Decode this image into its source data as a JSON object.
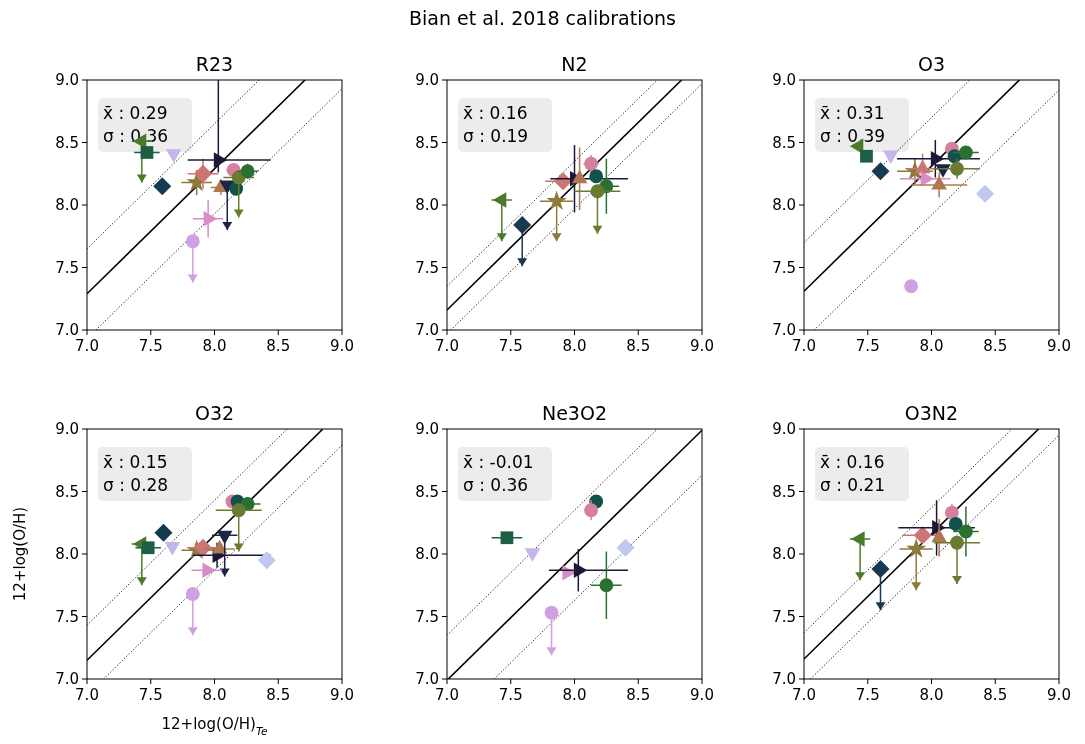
{
  "chart_data": [
    {
      "type": "other",
      "title": "Bian et al. 2018 calibrations"
    },
    {
      "type": "scatter",
      "title": "R23",
      "xlim": [
        7,
        9
      ],
      "ylim": [
        7,
        9
      ],
      "xticks": [
        {
          "value": 7,
          "label": "7.0"
        },
        {
          "value": 7.5,
          "label": "7.5"
        },
        {
          "value": 8,
          "label": "8.0"
        },
        {
          "value": 8.5,
          "label": "8.5"
        },
        {
          "value": 9,
          "label": "9.0"
        }
      ],
      "yticks": [
        {
          "value": 7,
          "label": "7.0"
        },
        {
          "value": 7.5,
          "label": "7.5"
        },
        {
          "value": 8,
          "label": "8.0"
        },
        {
          "value": 8.5,
          "label": "8.5"
        },
        {
          "value": 9,
          "label": "9.0"
        }
      ],
      "annotations": [
        "x̄ : 0.29",
        "σ : 0.36"
      ],
      "series": [
        {
          "type": "line",
          "color": "#000000",
          "line_style": "solid",
          "marker": "none",
          "x": [
            7,
            8.71
          ],
          "values": [
            7.29,
            9
          ]
        },
        {
          "type": "line",
          "color": "#000000",
          "line_style": "dotted",
          "marker": "none",
          "x": [
            7,
            8.35
          ],
          "values": [
            7.65,
            9
          ]
        },
        {
          "type": "line",
          "color": "#000000",
          "line_style": "dotted",
          "marker": "none",
          "x": [
            7.07,
            9
          ],
          "values": [
            7,
            8.93
          ]
        },
        {
          "type": "scatter",
          "color": "#4a7a2a",
          "marker": "triangle-left",
          "x": [
            7.43
          ],
          "values": [
            8.51
          ],
          "errors": [
            [
              8.18,
              8.51
            ]
          ],
          "xerrors": [
            0.08
          ]
        },
        {
          "type": "scatter",
          "color": "#1e5e45",
          "marker": "square",
          "x": [
            7.47
          ],
          "values": [
            8.42
          ],
          "xerrors": [
            0.1
          ]
        },
        {
          "type": "scatter",
          "color": "#c5b5e8",
          "marker": "triangle-down",
          "x": [
            7.68
          ],
          "values": [
            8.41
          ]
        },
        {
          "type": "scatter",
          "color": "#173a50",
          "marker": "diamond",
          "x": [
            7.59
          ],
          "values": [
            8.15
          ],
          "errors": [
            0.06
          ]
        },
        {
          "type": "scatter",
          "color": "#8c7a3a",
          "marker": "star",
          "x": [
            7.86
          ],
          "values": [
            8.18
          ],
          "errors": [
            0.1
          ],
          "xerrors": [
            0.12
          ]
        },
        {
          "type": "scatter",
          "color": "#cd7474",
          "marker": "diamond",
          "x": [
            7.91
          ],
          "values": [
            8.25
          ],
          "errors": [
            0.12
          ],
          "xerrors": [
            0.12
          ]
        },
        {
          "type": "scatter",
          "color": "#1c1838",
          "marker": "triangle-right",
          "x": [
            8.03
          ],
          "values": [
            8.36
          ],
          "errors": [
            [
              8.26,
              9
            ]
          ],
          "xerrors": [
            [
              7.79,
              8.44
            ]
          ]
        },
        {
          "type": "scatter",
          "color": "#b07850",
          "marker": "triangle",
          "x": [
            8.05
          ],
          "values": [
            8.14
          ],
          "errors": [
            0.06
          ],
          "xerrors": [
            0.08
          ]
        },
        {
          "type": "scatter",
          "color": "#1c2448",
          "marker": "triangle-down",
          "x": [
            8.1
          ],
          "values": [
            8.16
          ],
          "errors": [
            [
              7.8,
              8.16
            ]
          ]
        },
        {
          "type": "scatter",
          "color": "#d88cc8",
          "marker": "triangle-right",
          "x": [
            7.95
          ],
          "values": [
            7.89
          ],
          "errors": [
            0.15
          ],
          "xerrors": [
            0.12
          ]
        },
        {
          "type": "scatter",
          "color": "#d0a0e0",
          "marker": "circle",
          "x": [
            7.83
          ],
          "values": [
            7.71
          ],
          "errors": [
            [
              7.38,
              7.71
            ]
          ]
        },
        {
          "type": "scatter",
          "color": "#d580a0",
          "marker": "circle",
          "x": [
            8.15
          ],
          "values": [
            8.28
          ],
          "errors": [
            0.05
          ],
          "xerrors": [
            0.06
          ]
        },
        {
          "type": "scatter",
          "color": "#13524a",
          "marker": "circle",
          "x": [
            8.17
          ],
          "values": [
            8.13
          ]
        },
        {
          "type": "scatter",
          "color": "#6a7a30",
          "marker": "circle",
          "x": [
            8.19
          ],
          "values": [
            8.22
          ],
          "errors": [
            [
              7.9,
              8.22
            ]
          ],
          "xerrors": [
            0.12
          ]
        },
        {
          "type": "scatter",
          "color": "#2a7030",
          "marker": "circle",
          "x": [
            8.26
          ],
          "values": [
            8.27
          ],
          "errors": [
            0.06
          ],
          "xerrors": [
            0.08
          ]
        }
      ]
    },
    {
      "type": "scatter",
      "title": "N2",
      "xlim": [
        7,
        9
      ],
      "ylim": [
        7,
        9
      ],
      "xticks": [
        {
          "value": 7,
          "label": "7.0"
        },
        {
          "value": 7.5,
          "label": "7.5"
        },
        {
          "value": 8,
          "label": "8.0"
        },
        {
          "value": 8.5,
          "label": "8.5"
        },
        {
          "value": 9,
          "label": "9.0"
        }
      ],
      "yticks": [
        {
          "value": 7,
          "label": "7.0"
        },
        {
          "value": 7.5,
          "label": "7.5"
        },
        {
          "value": 8,
          "label": "8.0"
        },
        {
          "value": 8.5,
          "label": "8.5"
        },
        {
          "value": 9,
          "label": "9.0"
        }
      ],
      "annotations": [
        "x̄ : 0.16",
        "σ : 0.19"
      ],
      "series": [
        {
          "type": "line",
          "color": "#000000",
          "line_style": "solid",
          "marker": "none",
          "x": [
            7,
            8.84
          ],
          "values": [
            7.16,
            9
          ]
        },
        {
          "type": "line",
          "color": "#000000",
          "line_style": "dotted",
          "marker": "none",
          "x": [
            7,
            8.65
          ],
          "values": [
            7.35,
            9
          ]
        },
        {
          "type": "line",
          "color": "#000000",
          "line_style": "dotted",
          "marker": "none",
          "x": [
            7.03,
            9
          ],
          "values": [
            7,
            8.97
          ]
        },
        {
          "type": "scatter",
          "color": "#4a7a2a",
          "marker": "triangle-left",
          "x": [
            7.43
          ],
          "values": [
            8.04
          ],
          "errors": [
            [
              7.71,
              8.04
            ]
          ],
          "xerrors": [
            0.08
          ]
        },
        {
          "type": "scatter",
          "color": "#173a50",
          "marker": "diamond",
          "x": [
            7.59
          ],
          "values": [
            7.84
          ],
          "errors": [
            [
              7.51,
              7.84
            ]
          ]
        },
        {
          "type": "scatter",
          "color": "#8c7a3a",
          "marker": "star",
          "x": [
            7.86
          ],
          "values": [
            8.03
          ],
          "errors": [
            [
              7.71,
              8.03
            ]
          ],
          "xerrors": [
            0.13
          ]
        },
        {
          "type": "scatter",
          "color": "#cd7474",
          "marker": "diamond",
          "x": [
            7.91
          ],
          "values": [
            8.19
          ],
          "xerrors": [
            0.14
          ]
        },
        {
          "type": "scatter",
          "color": "#1c1838",
          "marker": "triangle-right",
          "x": [
            8
          ],
          "values": [
            8.21
          ],
          "errors": [
            0.27
          ],
          "xerrors": [
            [
              7.81,
              8.42
            ]
          ]
        },
        {
          "type": "scatter",
          "color": "#b07850",
          "marker": "triangle",
          "x": [
            8.04
          ],
          "values": [
            8.21
          ],
          "errors": [
            0.25
          ]
        },
        {
          "type": "scatter",
          "color": "#d580a0",
          "marker": "circle",
          "x": [
            8.13
          ],
          "values": [
            8.33
          ],
          "errors": [
            0.07
          ],
          "xerrors": [
            0.06
          ]
        },
        {
          "type": "scatter",
          "color": "#13524a",
          "marker": "circle",
          "x": [
            8.17
          ],
          "values": [
            8.23
          ]
        },
        {
          "type": "scatter",
          "color": "#2a7030",
          "marker": "circle",
          "x": [
            8.25
          ],
          "values": [
            8.15
          ],
          "errors": [
            0.22
          ],
          "xerrors": [
            0.1
          ]
        },
        {
          "type": "scatter",
          "color": "#6a7a30",
          "marker": "circle",
          "x": [
            8.18
          ],
          "values": [
            8.11
          ],
          "errors": [
            [
              7.77,
              8.11
            ]
          ],
          "xerrors": [
            0.18
          ]
        }
      ]
    },
    {
      "type": "scatter",
      "title": "O3",
      "xlim": [
        7,
        9
      ],
      "ylim": [
        7,
        9
      ],
      "xticks": [
        {
          "value": 7,
          "label": "7.0"
        },
        {
          "value": 7.5,
          "label": "7.5"
        },
        {
          "value": 8,
          "label": "8.0"
        },
        {
          "value": 8.5,
          "label": "8.5"
        },
        {
          "value": 9,
          "label": "9.0"
        }
      ],
      "yticks": [
        {
          "value": 7,
          "label": "7.0"
        },
        {
          "value": 7.5,
          "label": "7.5"
        },
        {
          "value": 8,
          "label": "8.0"
        },
        {
          "value": 8.5,
          "label": "8.5"
        },
        {
          "value": 9,
          "label": "9.0"
        }
      ],
      "annotations": [
        "x̄ : 0.31",
        "σ : 0.39"
      ],
      "series": [
        {
          "type": "line",
          "color": "#000000",
          "line_style": "solid",
          "marker": "none",
          "x": [
            7,
            8.69
          ],
          "values": [
            7.31,
            9
          ]
        },
        {
          "type": "line",
          "color": "#000000",
          "line_style": "dotted",
          "marker": "none",
          "x": [
            7,
            8.3
          ],
          "values": [
            7.7,
            9
          ]
        },
        {
          "type": "line",
          "color": "#000000",
          "line_style": "dotted",
          "marker": "none",
          "x": [
            7.08,
            9
          ],
          "values": [
            7,
            8.92
          ]
        },
        {
          "type": "scatter",
          "color": "#4a7a2a",
          "marker": "triangle-left",
          "x": [
            7.43
          ],
          "values": [
            8.47
          ]
        },
        {
          "type": "scatter",
          "color": "#1e5e45",
          "marker": "square",
          "x": [
            7.49
          ],
          "values": [
            8.39
          ]
        },
        {
          "type": "scatter",
          "color": "#c5b5e8",
          "marker": "triangle-down",
          "x": [
            7.68
          ],
          "values": [
            8.4
          ]
        },
        {
          "type": "scatter",
          "color": "#173a50",
          "marker": "diamond",
          "x": [
            7.6
          ],
          "values": [
            8.27
          ]
        },
        {
          "type": "scatter",
          "color": "#8c7a3a",
          "marker": "star",
          "x": [
            7.87
          ],
          "values": [
            8.27
          ],
          "errors": [
            0.1
          ],
          "xerrors": [
            0.14
          ]
        },
        {
          "type": "scatter",
          "color": "#cd7474",
          "marker": "triangle",
          "x": [
            7.93
          ],
          "values": [
            8.29
          ],
          "errors": [
            0.12
          ],
          "xerrors": [
            0.12
          ]
        },
        {
          "type": "scatter",
          "color": "#d88cc8",
          "marker": "triangle-right",
          "x": [
            7.95
          ],
          "values": [
            8.21
          ],
          "xerrors": [
            0.2
          ]
        },
        {
          "type": "scatter",
          "color": "#b07850",
          "marker": "triangle",
          "x": [
            8.06
          ],
          "values": [
            8.16
          ],
          "errors": [
            0.1
          ],
          "xerrors": [
            0.22
          ]
        },
        {
          "type": "scatter",
          "color": "#1c1838",
          "marker": "triangle-right",
          "x": [
            8.03
          ],
          "values": [
            8.37
          ],
          "errors": [
            0.15
          ],
          "xerrors": [
            [
              7.73,
              8.38
            ]
          ]
        },
        {
          "type": "scatter",
          "color": "#1c2448",
          "marker": "triangle-down",
          "x": [
            8.09
          ],
          "values": [
            8.29
          ]
        },
        {
          "type": "scatter",
          "color": "#d580a0",
          "marker": "circle",
          "x": [
            8.16
          ],
          "values": [
            8.45
          ]
        },
        {
          "type": "scatter",
          "color": "#13524a",
          "marker": "circle",
          "x": [
            8.18
          ],
          "values": [
            8.39
          ]
        },
        {
          "type": "scatter",
          "color": "#2a7030",
          "marker": "circle",
          "x": [
            8.27
          ],
          "values": [
            8.42
          ],
          "xerrors": [
            0.1
          ]
        },
        {
          "type": "scatter",
          "color": "#6a7a30",
          "marker": "circle",
          "x": [
            8.2
          ],
          "values": [
            8.29
          ],
          "errors": [
            0.08
          ],
          "xerrors": [
            0.18
          ]
        },
        {
          "type": "scatter",
          "color": "#c0c8f0",
          "marker": "diamond",
          "x": [
            8.42
          ],
          "values": [
            8.09
          ]
        },
        {
          "type": "scatter",
          "color": "#d0a0e0",
          "marker": "circle",
          "x": [
            7.84
          ],
          "values": [
            7.35
          ]
        }
      ]
    },
    {
      "type": "scatter",
      "title": "O32",
      "xlabel": "12+log(O/H)$_{Te}$",
      "ylabel": "12+log(O/H)",
      "xlim": [
        7,
        9
      ],
      "ylim": [
        7,
        9
      ],
      "xticks": [
        {
          "value": 7,
          "label": "7.0"
        },
        {
          "value": 7.5,
          "label": "7.5"
        },
        {
          "value": 8,
          "label": "8.0"
        },
        {
          "value": 8.5,
          "label": "8.5"
        },
        {
          "value": 9,
          "label": "9.0"
        }
      ],
      "yticks": [
        {
          "value": 7,
          "label": "7.0"
        },
        {
          "value": 7.5,
          "label": "7.5"
        },
        {
          "value": 8,
          "label": "8.0"
        },
        {
          "value": 8.5,
          "label": "8.5"
        },
        {
          "value": 9,
          "label": "9.0"
        }
      ],
      "annotations": [
        "x̄ : 0.15",
        "σ : 0.28"
      ],
      "series": [
        {
          "type": "line",
          "color": "#000000",
          "line_style": "solid",
          "marker": "none",
          "x": [
            7,
            8.85
          ],
          "values": [
            7.15,
            9
          ]
        },
        {
          "type": "line",
          "color": "#000000",
          "line_style": "dotted",
          "marker": "none",
          "x": [
            7,
            8.57
          ],
          "values": [
            7.43,
            9
          ]
        },
        {
          "type": "line",
          "color": "#000000",
          "line_style": "dotted",
          "marker": "none",
          "x": [
            7.13,
            9
          ],
          "values": [
            7,
            8.87
          ]
        },
        {
          "type": "scatter",
          "color": "#4a7a2a",
          "marker": "triangle-left",
          "x": [
            7.43
          ],
          "values": [
            8.08
          ],
          "errors": [
            [
              7.75,
              8.08
            ]
          ],
          "xerrors": [
            0.08
          ]
        },
        {
          "type": "scatter",
          "color": "#1e5e45",
          "marker": "square",
          "x": [
            7.48
          ],
          "values": [
            8.05
          ],
          "xerrors": [
            0.1
          ]
        },
        {
          "type": "scatter",
          "color": "#c5b5e8",
          "marker": "triangle-down",
          "x": [
            7.67
          ],
          "values": [
            8.06
          ]
        },
        {
          "type": "scatter",
          "color": "#173a50",
          "marker": "diamond",
          "x": [
            7.6
          ],
          "values": [
            8.17
          ]
        },
        {
          "type": "scatter",
          "color": "#8c7a3a",
          "marker": "star",
          "x": [
            7.86
          ],
          "values": [
            8.03
          ],
          "xerrors": [
            0.12
          ]
        },
        {
          "type": "scatter",
          "color": "#cd7474",
          "marker": "diamond",
          "x": [
            7.91
          ],
          "values": [
            8.05
          ],
          "xerrors": [
            0.12
          ]
        },
        {
          "type": "scatter",
          "color": "#1c1838",
          "marker": "triangle-right",
          "x": [
            8.02
          ],
          "values": [
            7.99
          ],
          "errors": [
            0.1
          ],
          "xerrors": [
            [
              7.83,
              8.44
            ]
          ]
        },
        {
          "type": "scatter",
          "color": "#b07850",
          "marker": "triangle",
          "x": [
            8.04
          ],
          "values": [
            8.04
          ],
          "xerrors": [
            0.12
          ]
        },
        {
          "type": "scatter",
          "color": "#1c2448",
          "marker": "triangle-down",
          "x": [
            8.08
          ],
          "values": [
            8.15
          ],
          "errors": [
            [
              7.82,
              8.15
            ]
          ],
          "xerrors": [
            0.1
          ]
        },
        {
          "type": "scatter",
          "color": "#d88cc8",
          "marker": "triangle-right",
          "x": [
            7.94
          ],
          "values": [
            7.87
          ],
          "xerrors": [
            0.12
          ]
        },
        {
          "type": "scatter",
          "color": "#d0a0e0",
          "marker": "circle",
          "x": [
            7.83
          ],
          "values": [
            7.68
          ],
          "errors": [
            [
              7.35,
              7.68
            ]
          ]
        },
        {
          "type": "scatter",
          "color": "#d580a0",
          "marker": "circle",
          "x": [
            8.14
          ],
          "values": [
            8.42
          ]
        },
        {
          "type": "scatter",
          "color": "#13524a",
          "marker": "circle",
          "x": [
            8.18
          ],
          "values": [
            8.42
          ]
        },
        {
          "type": "scatter",
          "color": "#2a7030",
          "marker": "circle",
          "x": [
            8.26
          ],
          "values": [
            8.4
          ],
          "xerrors": [
            0.1
          ]
        },
        {
          "type": "scatter",
          "color": "#6a7a30",
          "marker": "circle",
          "x": [
            8.19
          ],
          "values": [
            8.35
          ],
          "errors": [
            [
              8.02,
              8.35
            ]
          ],
          "xerrors": [
            0.18
          ]
        },
        {
          "type": "scatter",
          "color": "#c0c8f0",
          "marker": "diamond",
          "x": [
            8.41
          ],
          "values": [
            7.95
          ]
        }
      ]
    },
    {
      "type": "scatter",
      "title": "Ne3O2",
      "xlim": [
        7,
        9
      ],
      "ylim": [
        7,
        9
      ],
      "xticks": [
        {
          "value": 7,
          "label": "7.0"
        },
        {
          "value": 7.5,
          "label": "7.5"
        },
        {
          "value": 8,
          "label": "8.0"
        },
        {
          "value": 8.5,
          "label": "8.5"
        },
        {
          "value": 9,
          "label": "9.0"
        }
      ],
      "yticks": [
        {
          "value": 7,
          "label": "7.0"
        },
        {
          "value": 7.5,
          "label": "7.5"
        },
        {
          "value": 8,
          "label": "8.0"
        },
        {
          "value": 8.5,
          "label": "8.5"
        },
        {
          "value": 9,
          "label": "9.0"
        }
      ],
      "annotations": [
        "x̄ : -0.01",
        "σ : 0.36"
      ],
      "series": [
        {
          "type": "line",
          "color": "#000000",
          "line_style": "solid",
          "marker": "none",
          "x": [
            7.01,
            9
          ],
          "values": [
            7,
            8.99
          ]
        },
        {
          "type": "line",
          "color": "#000000",
          "line_style": "dotted",
          "marker": "none",
          "x": [
            7,
            8.65
          ],
          "values": [
            7.35,
            9
          ]
        },
        {
          "type": "line",
          "color": "#000000",
          "line_style": "dotted",
          "marker": "none",
          "x": [
            7.37,
            9
          ],
          "values": [
            7,
            8.63
          ]
        },
        {
          "type": "scatter",
          "color": "#1e5e45",
          "marker": "square",
          "x": [
            7.47
          ],
          "values": [
            8.13
          ],
          "xerrors": [
            0.12
          ]
        },
        {
          "type": "scatter",
          "color": "#c5b5e8",
          "marker": "triangle-down",
          "x": [
            7.67
          ],
          "values": [
            8.01
          ]
        },
        {
          "type": "scatter",
          "color": "#13524a",
          "marker": "circle",
          "x": [
            8.17
          ],
          "values": [
            8.42
          ]
        },
        {
          "type": "scatter",
          "color": "#d580a0",
          "marker": "circle",
          "x": [
            8.13
          ],
          "values": [
            8.35
          ],
          "errors": [
            0.08
          ],
          "xerrors": [
            0.05
          ]
        },
        {
          "type": "scatter",
          "color": "#c0c8f0",
          "marker": "diamond",
          "x": [
            8.4
          ],
          "values": [
            8.05
          ]
        },
        {
          "type": "scatter",
          "color": "#d88cc8",
          "marker": "triangle-right",
          "x": [
            7.94
          ],
          "values": [
            7.85
          ]
        },
        {
          "type": "scatter",
          "color": "#1c1838",
          "marker": "triangle-right",
          "x": [
            8.03
          ],
          "values": [
            7.87
          ],
          "errors": [
            0.17
          ],
          "xerrors": [
            [
              7.8,
              8.42
            ]
          ]
        },
        {
          "type": "scatter",
          "color": "#2a7030",
          "marker": "circle",
          "x": [
            8.25
          ],
          "values": [
            7.75
          ],
          "errors": [
            0.27
          ],
          "xerrors": [
            0.12
          ]
        },
        {
          "type": "scatter",
          "color": "#d0a0e0",
          "marker": "circle",
          "x": [
            7.82
          ],
          "values": [
            7.53
          ],
          "errors": [
            [
              7.19,
              7.53
            ]
          ]
        }
      ]
    },
    {
      "type": "scatter",
      "title": "O3N2",
      "xlim": [
        7,
        9
      ],
      "ylim": [
        7,
        9
      ],
      "xticks": [
        {
          "value": 7,
          "label": "7.0"
        },
        {
          "value": 7.5,
          "label": "7.5"
        },
        {
          "value": 8,
          "label": "8.0"
        },
        {
          "value": 8.5,
          "label": "8.5"
        },
        {
          "value": 9,
          "label": "9.0"
        }
      ],
      "yticks": [
        {
          "value": 7,
          "label": "7.0"
        },
        {
          "value": 7.5,
          "label": "7.5"
        },
        {
          "value": 8,
          "label": "8.0"
        },
        {
          "value": 8.5,
          "label": "8.5"
        },
        {
          "value": 9,
          "label": "9.0"
        }
      ],
      "annotations": [
        "x̄ : 0.16",
        "σ : 0.21"
      ],
      "series": [
        {
          "type": "line",
          "color": "#000000",
          "line_style": "solid",
          "marker": "none",
          "x": [
            7,
            8.84
          ],
          "values": [
            7.16,
            9
          ]
        },
        {
          "type": "line",
          "color": "#000000",
          "line_style": "dotted",
          "marker": "none",
          "x": [
            7,
            8.63
          ],
          "values": [
            7.37,
            9
          ]
        },
        {
          "type": "line",
          "color": "#000000",
          "line_style": "dotted",
          "marker": "none",
          "x": [
            7.05,
            9
          ],
          "values": [
            7,
            8.95
          ]
        },
        {
          "type": "scatter",
          "color": "#4a7a2a",
          "marker": "triangle-left",
          "x": [
            7.44
          ],
          "values": [
            8.12
          ],
          "errors": [
            [
              7.79,
              8.12
            ]
          ],
          "xerrors": [
            0.08
          ]
        },
        {
          "type": "scatter",
          "color": "#173a50",
          "marker": "diamond",
          "x": [
            7.6
          ],
          "values": [
            7.88
          ],
          "errors": [
            [
              7.55,
              7.88
            ]
          ]
        },
        {
          "type": "scatter",
          "color": "#8c7a3a",
          "marker": "star",
          "x": [
            7.88
          ],
          "values": [
            8.04
          ],
          "errors": [
            [
              7.71,
              8.04
            ]
          ],
          "xerrors": [
            0.13
          ]
        },
        {
          "type": "scatter",
          "color": "#cd7474",
          "marker": "diamond",
          "x": [
            7.93
          ],
          "values": [
            8.15
          ],
          "xerrors": [
            0.16
          ]
        },
        {
          "type": "scatter",
          "color": "#1c1838",
          "marker": "triangle-right",
          "x": [
            8.04
          ],
          "values": [
            8.21
          ],
          "errors": [
            0.22
          ],
          "xerrors": [
            0.3
          ]
        },
        {
          "type": "scatter",
          "color": "#b07850",
          "marker": "triangle",
          "x": [
            8.06
          ],
          "values": [
            8.13
          ],
          "errors": [
            0.15
          ]
        },
        {
          "type": "scatter",
          "color": "#d580a0",
          "marker": "circle",
          "x": [
            8.16
          ],
          "values": [
            8.33
          ],
          "errors": [
            0.07
          ]
        },
        {
          "type": "scatter",
          "color": "#13524a",
          "marker": "circle",
          "x": [
            8.19
          ],
          "values": [
            8.24
          ]
        },
        {
          "type": "scatter",
          "color": "#2a7030",
          "marker": "circle",
          "x": [
            8.27
          ],
          "values": [
            8.18
          ],
          "errors": [
            0.2
          ],
          "xerrors": [
            0.1
          ]
        },
        {
          "type": "scatter",
          "color": "#6a7a30",
          "marker": "circle",
          "x": [
            8.2
          ],
          "values": [
            8.09
          ],
          "errors": [
            [
              7.76,
              8.09
            ]
          ],
          "xerrors": [
            0.18
          ]
        }
      ]
    }
  ]
}
